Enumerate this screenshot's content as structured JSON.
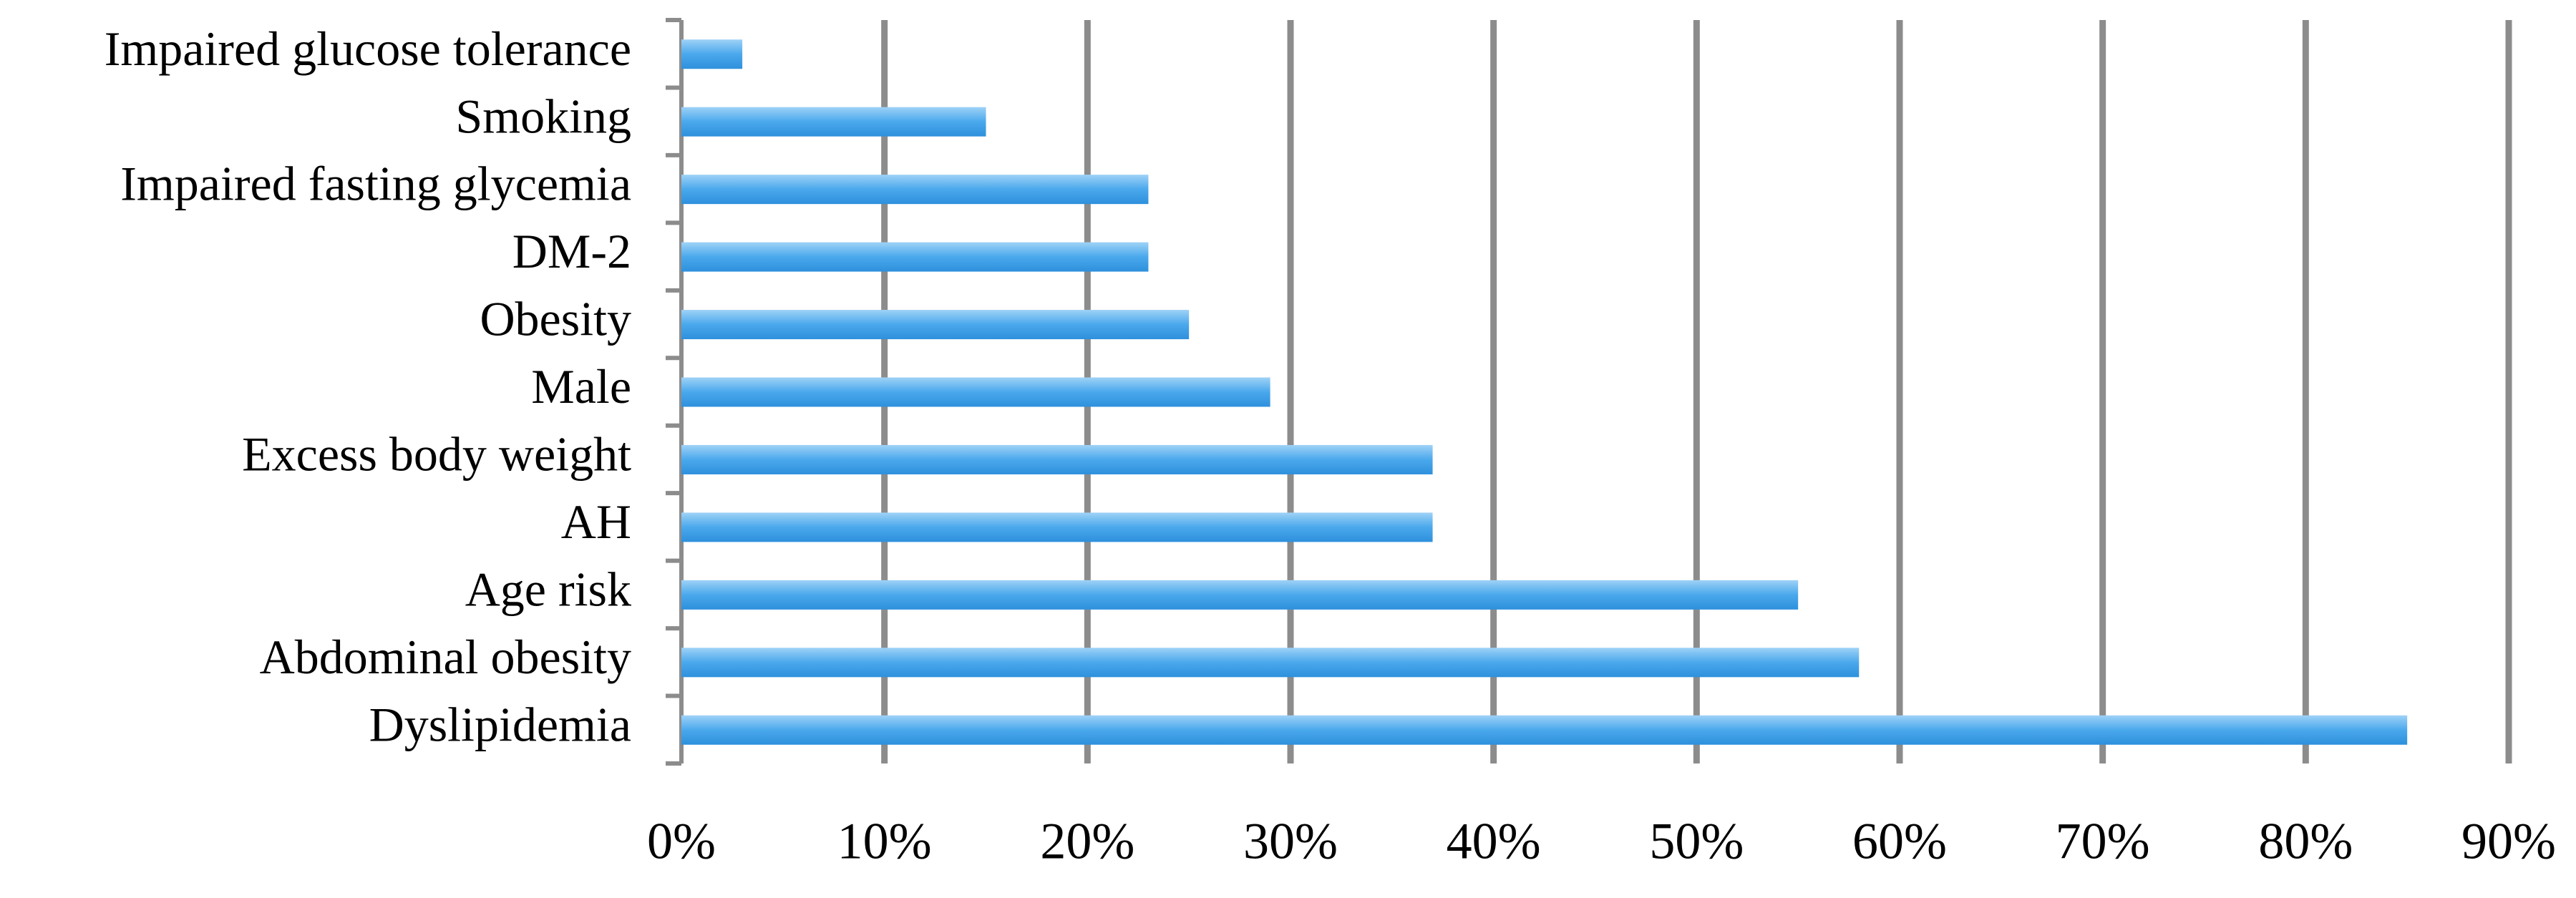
{
  "chart_data": {
    "type": "bar",
    "orientation": "horizontal",
    "categories": [
      "Impaired glucose tolerance",
      "Smoking",
      "Impaired fasting glycemia",
      "DM-2",
      "Obesity",
      "Male",
      "Excess body weight",
      "AH",
      "Age risk",
      "Abdominal obesity",
      "Dyslipidemia"
    ],
    "values": [
      3,
      15,
      23,
      23,
      25,
      29,
      37,
      37,
      55,
      58,
      85
    ],
    "color": "#4aa8ec",
    "xlim": [
      0,
      90
    ],
    "xticks": [
      {
        "value": 0,
        "label": "0%"
      },
      {
        "value": 10,
        "label": "10%"
      },
      {
        "value": 20,
        "label": "20%"
      },
      {
        "value": 30,
        "label": "30%"
      },
      {
        "value": 40,
        "label": "40%"
      },
      {
        "value": 50,
        "label": "50%"
      },
      {
        "value": 60,
        "label": "60%"
      },
      {
        "value": 70,
        "label": "70%"
      },
      {
        "value": 80,
        "label": "80%"
      },
      {
        "value": 90,
        "label": "90%"
      }
    ],
    "grid": true
  }
}
